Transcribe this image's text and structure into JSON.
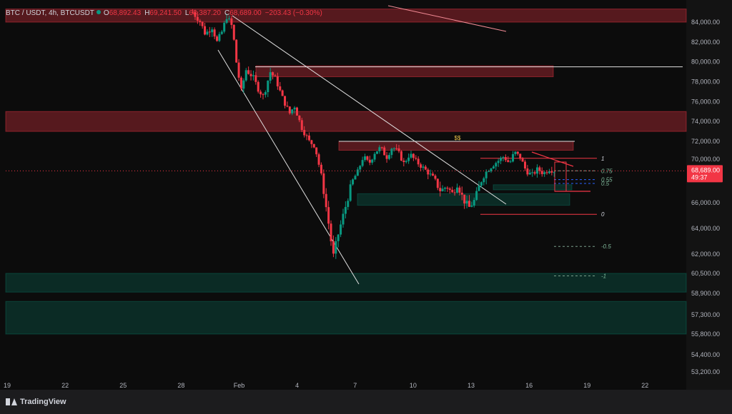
{
  "header": {
    "symbol": "BTC / USDT, 4h, BTCUSDT",
    "o_label": "O",
    "o_value": "68,892.43",
    "h_label": "H",
    "h_value": "69,241.50",
    "l_label": "L",
    "l_value": "68,387.20",
    "c_label": "C",
    "c_value": "68,689.00",
    "change": "−203.43 (−0.30%)"
  },
  "branding": {
    "name": "TradingView"
  },
  "colors": {
    "up": "#089981",
    "down": "#f23645",
    "background": "#0c0c0c",
    "axis_text": "#b2b5be"
  },
  "chart_data": {
    "type": "candlestick",
    "symbol": "BTCUSDT",
    "timeframe": "4h",
    "y_ticks": [
      "84,000.00",
      "82,000.00",
      "80,000.00",
      "78,000.00",
      "76,000.00",
      "74,000.00",
      "72,000.00",
      "70,000.00",
      "68,000.00",
      "66,000.00",
      "64,000.00",
      "62,000.00",
      "60,500.00",
      "58,900.00",
      "57,300.00",
      "55,800.00",
      "54,400.00",
      "53,200.00"
    ],
    "x_ticks": [
      "19",
      "22",
      "25",
      "28",
      "Feb",
      "4",
      "7",
      "10",
      "13",
      "16",
      "19",
      "22"
    ],
    "last_price": {
      "value": "68,689.00",
      "countdown": "49:37"
    },
    "price_path": [
      [
        0,
        84800
      ],
      [
        0.7,
        84200
      ],
      [
        1.3,
        82800
      ],
      [
        2,
        83500
      ],
      [
        2.5,
        82000
      ],
      [
        3,
        83000
      ],
      [
        3.5,
        84500
      ],
      [
        4.1,
        83500
      ],
      [
        4.5,
        80000
      ],
      [
        5,
        77000
      ],
      [
        5.5,
        79200
      ],
      [
        6.2,
        78500
      ],
      [
        6.8,
        77200
      ],
      [
        7.3,
        76500
      ],
      [
        8,
        79000
      ],
      [
        8.6,
        78200
      ],
      [
        9.2,
        76500
      ],
      [
        10,
        74800
      ],
      [
        10.5,
        75600
      ],
      [
        11.2,
        73500
      ],
      [
        12,
        72000
      ],
      [
        12.6,
        71500
      ],
      [
        13.2,
        68500
      ],
      [
        14,
        64500
      ],
      [
        14.5,
        61800
      ],
      [
        15,
        63500
      ],
      [
        15.7,
        65500
      ],
      [
        16.4,
        67500
      ],
      [
        17,
        68500
      ],
      [
        17.6,
        70300
      ],
      [
        18.2,
        69500
      ],
      [
        18.8,
        70800
      ],
      [
        19.4,
        71300
      ],
      [
        20,
        70200
      ],
      [
        20.6,
        71400
      ],
      [
        21.2,
        70800
      ],
      [
        21.8,
        69500
      ],
      [
        22.4,
        70600
      ],
      [
        23,
        69800
      ],
      [
        23.6,
        69200
      ],
      [
        24.2,
        68600
      ],
      [
        24.9,
        67800
      ],
      [
        25.6,
        66900
      ],
      [
        26.2,
        67300
      ],
      [
        26.8,
        66700
      ],
      [
        27.3,
        67500
      ],
      [
        27.9,
        66300
      ],
      [
        28.5,
        65600
      ],
      [
        29.1,
        66200
      ],
      [
        29.7,
        67600
      ],
      [
        30.3,
        68600
      ],
      [
        30.9,
        69300
      ],
      [
        31.5,
        69800
      ],
      [
        32.1,
        70300
      ],
      [
        32.7,
        69500
      ],
      [
        33.2,
        70800
      ],
      [
        33.8,
        70200
      ],
      [
        34.4,
        68700
      ],
      [
        35,
        68200
      ],
      [
        35.6,
        68900
      ],
      [
        36.2,
        68400
      ],
      [
        36.8,
        68900
      ],
      [
        37.3,
        68689
      ]
    ],
    "supply_zones": [
      {
        "from": 84000,
        "to": 85100
      },
      {
        "from": 78500,
        "to": 79600
      },
      {
        "from": 73000,
        "to": 75000
      },
      {
        "from": 71000,
        "to": 72000
      }
    ],
    "demand_zones": [
      {
        "from": 59000,
        "to": 60500
      },
      {
        "from": 55800,
        "to": 58300
      },
      {
        "from": 65800,
        "to": 66700
      },
      {
        "from": 67000,
        "to": 67400
      }
    ],
    "fib_levels": [
      {
        "label": "1",
        "price": 70100
      },
      {
        "label": "0.75",
        "price": 68700
      },
      {
        "label": "0.55",
        "price": 67800
      },
      {
        "label": "0.5",
        "price": 67500
      },
      {
        "label": "0",
        "price": 65100
      },
      {
        "label": "-0.5",
        "price": 62600
      },
      {
        "label": "-1",
        "price": 60300
      }
    ],
    "annotations": [
      {
        "text": "$$",
        "price": 72000
      }
    ]
  }
}
